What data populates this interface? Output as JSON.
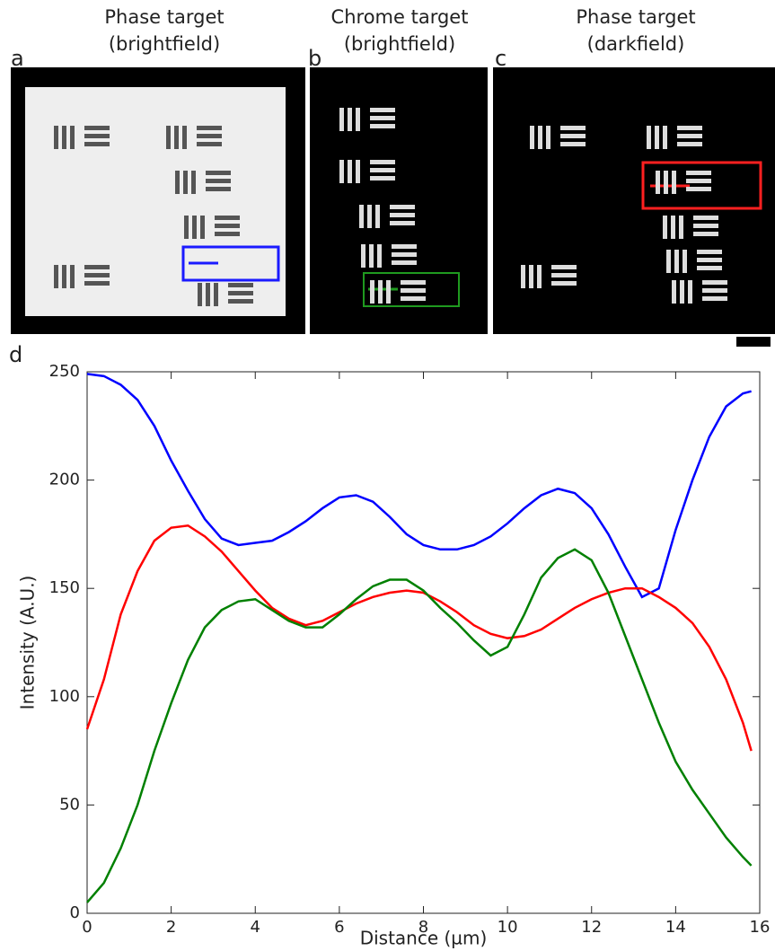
{
  "panels": [
    {
      "label": "a",
      "title": [
        "Phase target",
        "(brightfield)"
      ]
    },
    {
      "label": "b",
      "title": [
        "Chrome target",
        "(brightfield)"
      ]
    },
    {
      "label": "c",
      "title": [
        "Phase target",
        "(darkfield)"
      ]
    }
  ],
  "chart_data": {
    "type": "line",
    "label": "d",
    "x_label": "Distance (µm)",
    "y_label": "Intensity (A.U.)",
    "x": [
      0,
      0.4,
      0.8,
      1.2,
      1.6,
      2.0,
      2.4,
      2.8,
      3.2,
      3.6,
      4.0,
      4.4,
      4.8,
      5.2,
      5.6,
      6.0,
      6.4,
      6.8,
      7.2,
      7.6,
      8.0,
      8.4,
      8.8,
      9.2,
      9.6,
      10.0,
      10.4,
      10.8,
      11.2,
      11.6,
      12.0,
      12.4,
      12.8,
      13.2,
      13.6,
      14.0,
      14.4,
      14.8,
      15.2,
      15.6,
      15.8
    ],
    "series": [
      {
        "color": "#0000ff",
        "values": [
          249,
          248,
          244,
          237,
          225,
          209,
          195,
          182,
          173,
          170,
          171,
          172,
          176,
          181,
          187,
          192,
          193,
          190,
          183,
          175,
          170,
          168,
          168,
          170,
          174,
          180,
          187,
          193,
          196,
          194,
          187,
          175,
          160,
          146,
          150,
          177,
          200,
          220,
          234,
          240,
          241
        ]
      },
      {
        "color": "#ff0000",
        "values": [
          85,
          108,
          138,
          158,
          172,
          178,
          179,
          174,
          167,
          158,
          149,
          141,
          136,
          133,
          135,
          139,
          143,
          146,
          148,
          149,
          148,
          144,
          139,
          133,
          129,
          127,
          128,
          131,
          136,
          141,
          145,
          148,
          150,
          150,
          146,
          141,
          134,
          123,
          108,
          88,
          75
        ]
      },
      {
        "color": "#008000",
        "values": [
          5,
          14,
          30,
          50,
          75,
          97,
          117,
          132,
          140,
          144,
          145,
          140,
          135,
          132,
          132,
          138,
          145,
          151,
          154,
          154,
          149,
          141,
          134,
          126,
          119,
          123,
          138,
          155,
          164,
          168,
          163,
          148,
          128,
          108,
          88,
          70,
          57,
          46,
          35,
          26,
          22
        ]
      }
    ],
    "xlim": [
      0,
      16
    ],
    "ylim": [
      0,
      250
    ],
    "xticks": [
      0,
      2,
      4,
      6,
      8,
      10,
      12,
      14,
      16
    ],
    "yticks": [
      0,
      50,
      100,
      150,
      200,
      250
    ],
    "grid": false
  }
}
